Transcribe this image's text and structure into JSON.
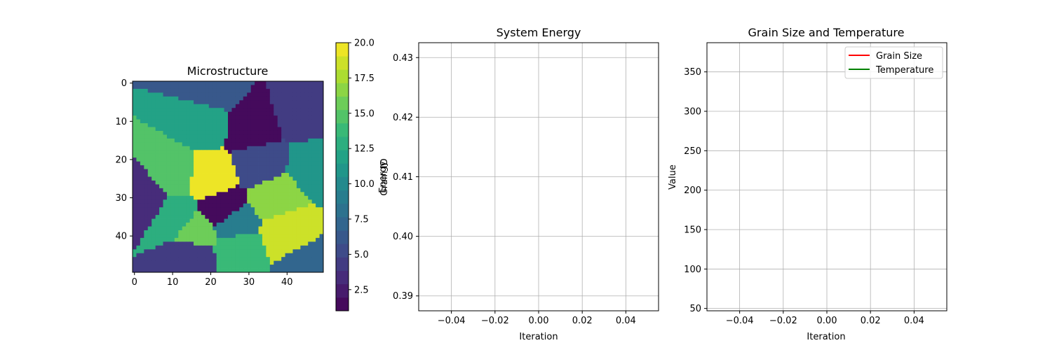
{
  "chart_data": [
    {
      "type": "heatmap",
      "title": "Microstructure",
      "x_ticks": [
        0,
        10,
        20,
        30,
        40
      ],
      "y_ticks": [
        0,
        10,
        20,
        30,
        40
      ],
      "grid_size": 50,
      "colorbar": {
        "label": "Grain ID",
        "range": [
          1,
          20
        ],
        "ticks": [
          "2.5",
          "5.0",
          "7.5",
          "10.0",
          "12.5",
          "15.0",
          "17.5",
          "20.0"
        ],
        "levels": 20,
        "colormap": "viridis"
      },
      "grains": [
        {
          "id": 20,
          "x": 20,
          "y": 25
        },
        {
          "id": 19,
          "x": 40,
          "y": 39
        },
        {
          "id": 17,
          "x": 37,
          "y": 30
        },
        {
          "id": 14,
          "x": 27,
          "y": 43
        },
        {
          "id": 15,
          "x": 10,
          "y": 24
        },
        {
          "id": 12,
          "x": 18,
          "y": 10
        },
        {
          "id": 11,
          "x": 47,
          "y": 22
        },
        {
          "id": 9,
          "x": 26,
          "y": 37
        },
        {
          "id": 7,
          "x": 45,
          "y": 48
        },
        {
          "id": 6,
          "x": 20,
          "y": 2
        },
        {
          "id": 5,
          "x": 33,
          "y": 21
        },
        {
          "id": 3,
          "x": 3,
          "y": 30
        },
        {
          "id": 4,
          "x": 44,
          "y": 8
        },
        {
          "id": 4,
          "x": 15,
          "y": 45
        },
        {
          "id": 1,
          "x": 31,
          "y": 12
        },
        {
          "id": 1,
          "x": 23,
          "y": 33
        },
        {
          "id": 16,
          "x": 16,
          "y": 39
        },
        {
          "id": 13,
          "x": 11,
          "y": 35
        }
      ]
    },
    {
      "type": "line",
      "title": "System Energy",
      "xlabel": "Iteration",
      "ylabel": "Energy",
      "x_ticks": [
        "−0.04",
        "−0.02",
        "0.00",
        "0.02",
        "0.04"
      ],
      "y_ticks": [
        "0.39",
        "0.40",
        "0.41",
        "0.42",
        "0.43"
      ],
      "xlim": [
        -0.055,
        0.055
      ],
      "ylim": [
        0.3875,
        0.4325
      ],
      "grid": true,
      "series": []
    },
    {
      "type": "line",
      "title": "Grain Size and Temperature",
      "xlabel": "Iteration",
      "ylabel": "Value",
      "x_ticks": [
        "−0.04",
        "−0.02",
        "0.00",
        "0.02",
        "0.04"
      ],
      "y_ticks": [
        "50",
        "100",
        "150",
        "200",
        "250",
        "300",
        "350"
      ],
      "xlim": [
        -0.055,
        0.055
      ],
      "ylim": [
        47,
        387
      ],
      "grid": true,
      "legend_position": "top-right",
      "series": [
        {
          "name": "Grain Size",
          "color": "#ff0000",
          "x": [],
          "y": []
        },
        {
          "name": "Temperature",
          "color": "#008000",
          "x": [],
          "y": []
        }
      ]
    }
  ]
}
